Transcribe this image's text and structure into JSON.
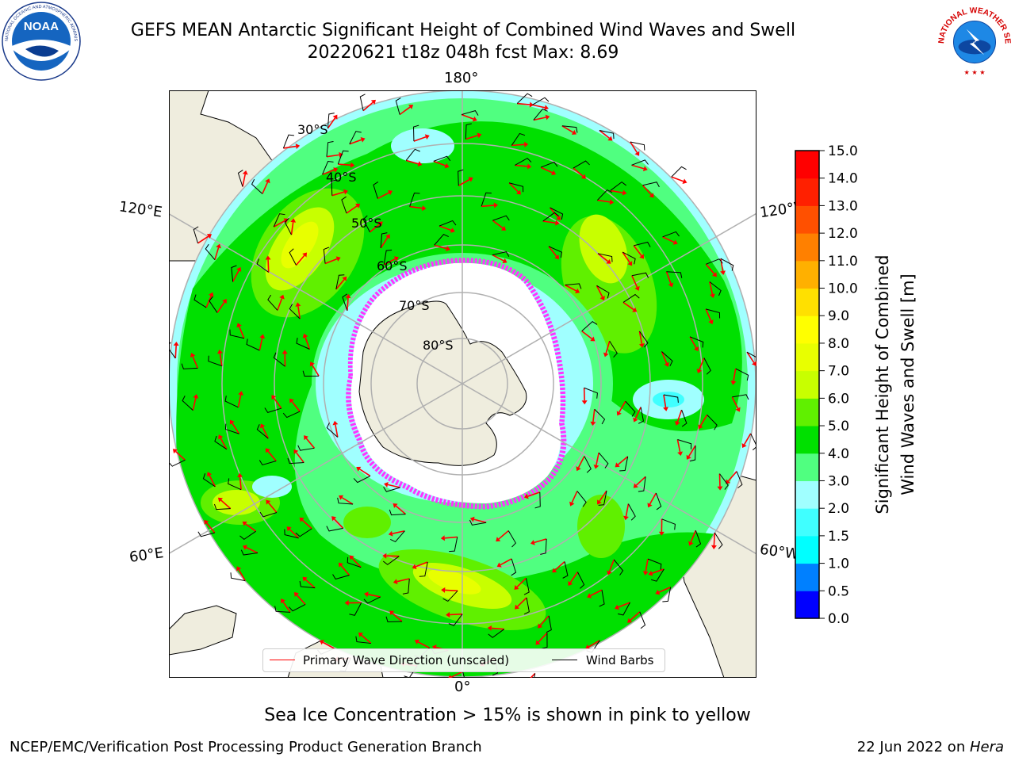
{
  "title": {
    "line1": "GEFS MEAN Antarctic Significant Height of Combined Wind Waves and Swell",
    "line2": "20220621 t18z 048h fcst   Max: 8.69"
  },
  "logos": {
    "noaa": {
      "text": "NOAA",
      "ring_text": "NATIONAL OCEANIC AND ATMOSPHERIC ADMINISTRATION · U.S. DEPARTMENT OF COMMERCE"
    },
    "nws": {
      "ring_text": "NATIONAL WEATHER SERVICE"
    }
  },
  "map": {
    "projection": "south-polar-stereographic",
    "longitude_labels": {
      "top": "180°",
      "bottom": "0°",
      "left_upper": "120°E",
      "left_lower": "60°E",
      "right_upper": "120°W",
      "right_lower": "60°W"
    },
    "latitude_labels": [
      "30°S",
      "40°S",
      "50°S",
      "60°S",
      "70°S",
      "80°S"
    ],
    "colors": {
      "land": "#efedde",
      "ice": "#ffffff",
      "ice_edge": "#ff33ff",
      "gridline": "#b0b0b0",
      "wave_arrow": "#ff0000",
      "wind_barb": "#000000"
    }
  },
  "legend": {
    "primary_wave": "Primary Wave Direction (unscaled)",
    "wind_barbs": "Wind Barbs",
    "primary_wave_color": "#ff0000",
    "wind_barbs_color": "#000000"
  },
  "colorbar": {
    "label": "Significant Height of Combined Wind Waves and Swell [m]",
    "label_line1": "Significant Height of Combined",
    "label_line2": "Wind Waves and Swell [m]",
    "ticks": [
      "0.0",
      "0.5",
      "1.0",
      "1.5",
      "2.0",
      "3.0",
      "4.0",
      "5.0",
      "6.0",
      "7.0",
      "8.0",
      "9.0",
      "10.0",
      "11.0",
      "12.0",
      "13.0",
      "14.0",
      "15.0"
    ],
    "colors": [
      "#0000ff",
      "#0080ff",
      "#00ffff",
      "#40ffff",
      "#a0ffff",
      "#50ff80",
      "#00e000",
      "#60f000",
      "#c8ff00",
      "#e8ff00",
      "#ffff00",
      "#ffe000",
      "#ffb000",
      "#ff8000",
      "#ff5000",
      "#ff2000",
      "#ff0000"
    ]
  },
  "caption": "Sea Ice Concentration > 15% is shown in pink to yellow",
  "footer": {
    "left": "NCEP/EMC/Verification Post Processing Product Generation Branch",
    "right_date": "22 Jun 2022 on ",
    "right_host": "Hera"
  }
}
